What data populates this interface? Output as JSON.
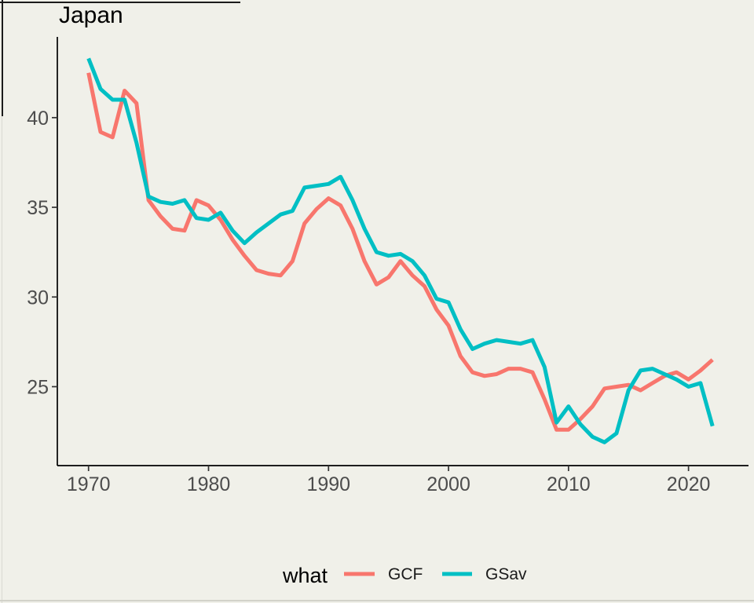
{
  "title": "Japan",
  "colors": {
    "background": "#F0F0E9",
    "axis": "#000000",
    "tick_label": "#4D4D4D",
    "gcf": "#F8766D",
    "gsav": "#00BFC4"
  },
  "legend": {
    "title": "what",
    "entries": [
      {
        "label": "GCF",
        "color": "#F8766D"
      },
      {
        "label": "GSav",
        "color": "#00BFC4"
      }
    ]
  },
  "chart_data": {
    "type": "line",
    "title": "Japan",
    "xlabel": "",
    "ylabel": "",
    "x_ticks": [
      1970,
      1980,
      1990,
      2000,
      2010,
      2020
    ],
    "y_ticks": [
      25,
      30,
      35,
      40
    ],
    "xlim": [
      1967.4,
      2025.0
    ],
    "ylim": [
      20.6,
      44.5
    ],
    "grid": false,
    "legend_position": "bottom",
    "legend_title": "what",
    "x": [
      1970,
      1971,
      1972,
      1973,
      1974,
      1975,
      1976,
      1977,
      1978,
      1979,
      1980,
      1981,
      1982,
      1983,
      1984,
      1985,
      1986,
      1987,
      1988,
      1989,
      1990,
      1991,
      1992,
      1993,
      1994,
      1995,
      1996,
      1997,
      1998,
      1999,
      2000,
      2001,
      2002,
      2003,
      2004,
      2005,
      2006,
      2007,
      2008,
      2009,
      2010,
      2011,
      2012,
      2013,
      2014,
      2015,
      2016,
      2017,
      2018,
      2019,
      2020,
      2021,
      2022
    ],
    "series": [
      {
        "name": "GCF",
        "color": "#F8766D",
        "values": [
          42.5,
          39.2,
          38.9,
          41.5,
          40.8,
          35.4,
          34.5,
          33.8,
          33.7,
          35.4,
          35.1,
          34.3,
          33.2,
          32.3,
          31.5,
          31.3,
          31.2,
          32.0,
          34.1,
          34.9,
          35.5,
          35.1,
          33.8,
          32.0,
          30.7,
          31.1,
          32.0,
          31.2,
          30.6,
          29.3,
          28.4,
          26.7,
          25.8,
          25.6,
          25.7,
          26.0,
          26.0,
          25.8,
          24.3,
          22.6,
          22.6,
          23.2,
          23.9,
          24.9,
          25.0,
          25.1,
          24.8,
          25.2,
          25.6,
          25.8,
          25.4,
          25.9,
          26.5
        ]
      },
      {
        "name": "GSav",
        "color": "#00BFC4",
        "values": [
          43.3,
          41.6,
          41.0,
          41.0,
          38.6,
          35.6,
          35.3,
          35.2,
          35.4,
          34.4,
          34.3,
          34.7,
          33.7,
          33.0,
          33.6,
          34.1,
          34.6,
          34.8,
          36.1,
          36.2,
          36.3,
          36.7,
          35.4,
          33.8,
          32.5,
          32.3,
          32.4,
          32.0,
          31.2,
          29.9,
          29.7,
          28.2,
          27.1,
          27.4,
          27.6,
          27.5,
          27.4,
          27.6,
          26.1,
          23.0,
          23.9,
          22.9,
          22.2,
          21.9,
          22.4,
          24.8,
          25.9,
          26.0,
          25.7,
          25.4,
          25.0,
          25.2,
          22.8
        ]
      }
    ]
  }
}
